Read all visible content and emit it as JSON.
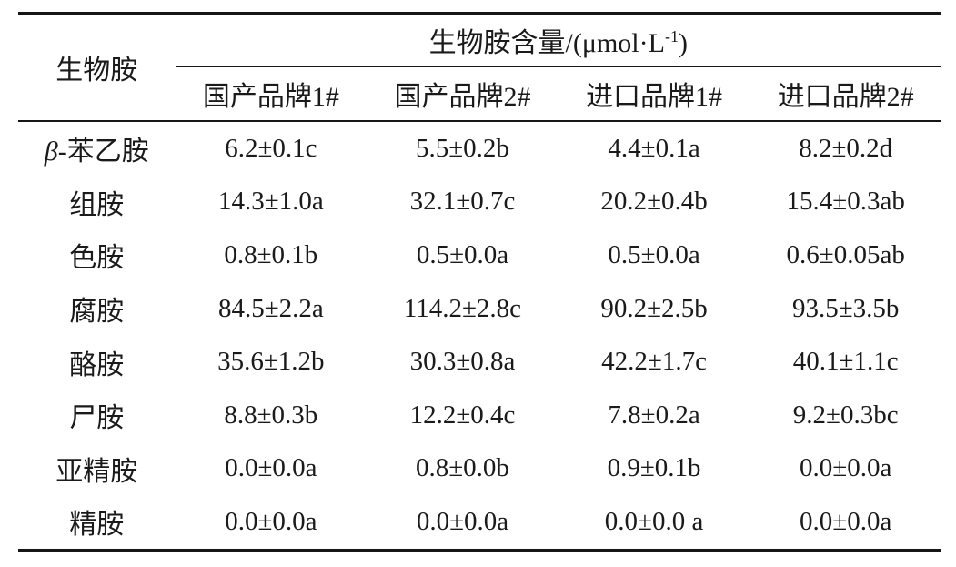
{
  "chart_data": {
    "type": "table",
    "corner_header": "生物胺",
    "group_header": {
      "prefix": "生物胺含量/(μmol·L",
      "superscript": "-1",
      "suffix": ")",
      "full": "生物胺含量/(μmol·L⁻¹)"
    },
    "columns": [
      "国产品牌1#",
      "国产品牌2#",
      "进口品牌1#",
      "进口品牌2#"
    ],
    "rows": [
      {
        "label": "β-苯乙胺",
        "values": [
          "6.2±0.1c",
          "5.5±0.2b",
          "4.4±0.1a",
          "8.2±0.2d"
        ]
      },
      {
        "label": "组胺",
        "values": [
          "14.3±1.0a",
          "32.1±0.7c",
          "20.2±0.4b",
          "15.4±0.3ab"
        ]
      },
      {
        "label": "色胺",
        "values": [
          "0.8±0.1b",
          "0.5±0.0a",
          "0.5±0.0a",
          "0.6±0.05ab"
        ]
      },
      {
        "label": "腐胺",
        "values": [
          "84.5±2.2a",
          "114.2±2.8c",
          "90.2±2.5b",
          "93.5±3.5b"
        ]
      },
      {
        "label": "酪胺",
        "values": [
          "35.6±1.2b",
          "30.3±0.8a",
          "42.2±1.7c",
          "40.1±1.1c"
        ]
      },
      {
        "label": "尸胺",
        "values": [
          "8.8±0.3b",
          "12.2±0.4c",
          "7.8±0.2a",
          "9.2±0.3bc"
        ]
      },
      {
        "label": "亚精胺",
        "values": [
          "0.0±0.0a",
          "0.8±0.0b",
          "0.9±0.1b",
          "0.0±0.0a"
        ]
      },
      {
        "label": "精胺",
        "values": [
          "0.0±0.0a",
          "0.0±0.0a",
          "0.0±0.0 a",
          "0.0±0.0a"
        ]
      }
    ],
    "colors": {
      "text": "#1a1a1a",
      "rule": "#161616",
      "background": "#ffffff"
    }
  }
}
